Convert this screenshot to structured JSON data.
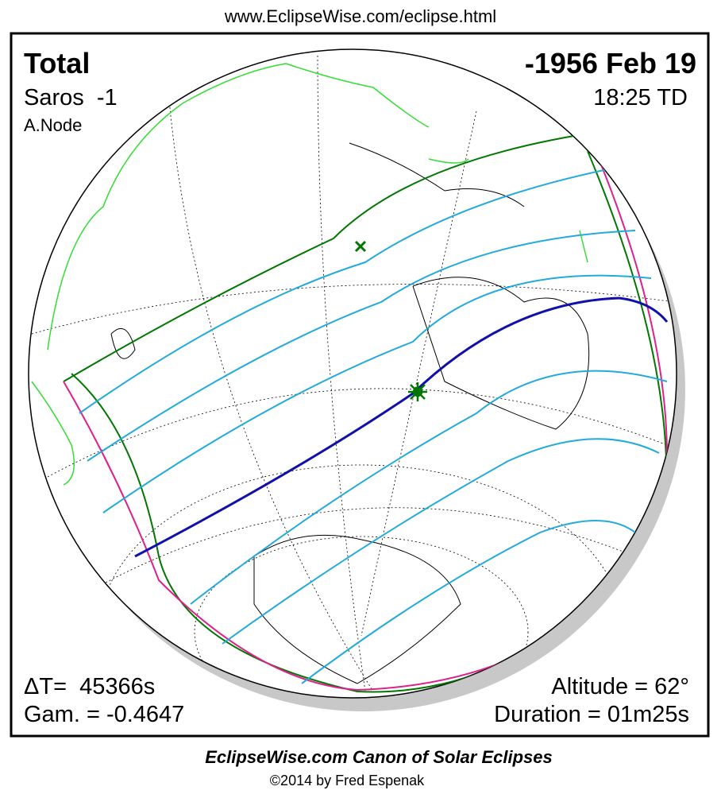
{
  "header": {
    "url": "www.EclipseWise.com/eclipse.html"
  },
  "eclipse": {
    "type": "Total",
    "date": "-1956 Feb 19",
    "saros": "Saros  -1",
    "time": "18:25 TD",
    "node": "A.Node",
    "delta_t": "ΔT=  45366s",
    "gamma": "Gam. = -0.4647",
    "altitude": "Altitude = 62°",
    "duration": "Duration = 01m25s"
  },
  "footer": {
    "title": "EclipseWise.com Canon of Solar Eclipses",
    "copyright": "©2014 by Fred Espenak"
  }
}
